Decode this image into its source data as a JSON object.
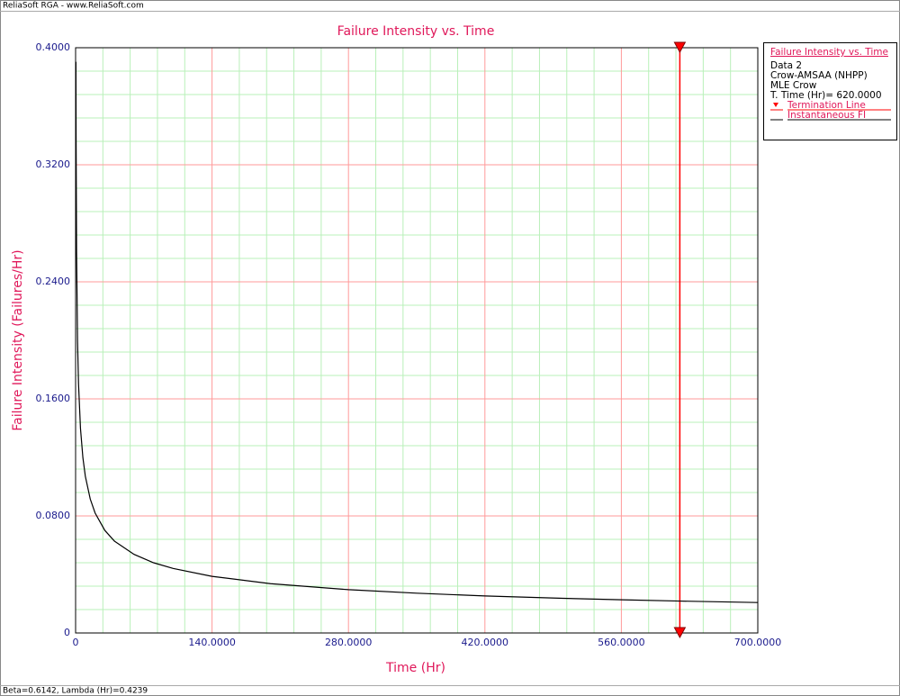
{
  "window_title": "ReliaSoft RGA - www.ReliaSoft.com",
  "status_bar": "Beta=0.6142, Lambda (Hr)=0.4239",
  "chart_data": {
    "type": "line",
    "title": "Failure Intensity vs. Time",
    "xlabel": "Time (Hr)",
    "ylabel": "Failure Intensity (Failures/Hr)",
    "xlim": [
      0,
      700
    ],
    "ylim": [
      0,
      0.4
    ],
    "xticks": [
      0,
      {
        "value": 140,
        "label": "140.0000"
      },
      {
        "value": 280,
        "label": "280.0000"
      },
      {
        "value": 420,
        "label": "420.0000"
      },
      {
        "value": 560,
        "label": "560.0000"
      },
      {
        "value": 700,
        "label": "700.0000"
      }
    ],
    "yticks": [
      0,
      {
        "value": 0.08,
        "label": "0.0800"
      },
      {
        "value": 0.16,
        "label": "0.1600"
      },
      {
        "value": 0.24,
        "label": "0.2400"
      },
      {
        "value": 0.32,
        "label": "0.3200"
      },
      {
        "value": 0.4,
        "label": "0.4000"
      }
    ],
    "xminorticks": [
      28,
      56,
      84,
      112,
      168,
      196,
      224,
      252,
      308,
      336,
      364,
      392,
      448,
      476,
      504,
      532,
      588,
      616,
      644,
      672
    ],
    "yminorticks": [
      0.016,
      0.032,
      0.048,
      0.064,
      0.096,
      0.112,
      0.128,
      0.144,
      0.176,
      0.192,
      0.208,
      0.224,
      0.256,
      0.272,
      0.288,
      0.304,
      0.336,
      0.352,
      0.368,
      0.384
    ],
    "grid": true,
    "grid_color": "#ff9a9a",
    "minor_grid_color": "#b9f0b9",
    "legend_position": "right",
    "legend_notes": [
      "Data 2",
      "Crow-AMSAA (NHPP)",
      "MLE Crow",
      "T. Time (Hr)= 620.0000"
    ],
    "series": [
      {
        "name": "Termination Line",
        "color": "#ff0000",
        "marker": "triangle-down",
        "x": [
          620,
          620
        ],
        "values": [
          0.4,
          0
        ]
      },
      {
        "name": "Instantaneous FI",
        "color": "#000000",
        "x": [
          0.35,
          0.5,
          1,
          2,
          3,
          5,
          7.5,
          10,
          15,
          20,
          30,
          40,
          60,
          80,
          100,
          140,
          200,
          280,
          350,
          420,
          500,
          560,
          620,
          700
        ],
        "values": [
          0.3904,
          0.3402,
          0.2604,
          0.1993,
          0.1704,
          0.1399,
          0.1197,
          0.1071,
          0.0916,
          0.082,
          0.0701,
          0.0627,
          0.0537,
          0.048,
          0.0441,
          0.0387,
          0.0337,
          0.0296,
          0.0272,
          0.0253,
          0.0237,
          0.0227,
          0.0218,
          0.0208
        ]
      }
    ]
  }
}
